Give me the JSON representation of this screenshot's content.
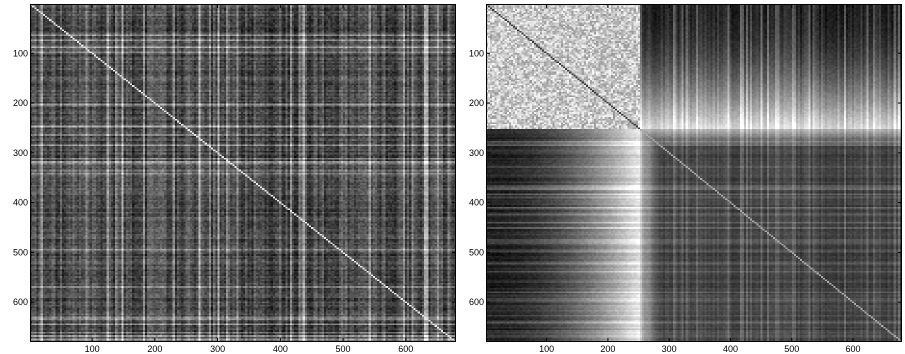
{
  "chart_data": [
    {
      "type": "heatmap",
      "title": "",
      "xlabel": "",
      "ylabel": "",
      "colormap": "gray",
      "xlim": [
        1,
        680
      ],
      "ylim": [
        680,
        1
      ],
      "x_ticks": [
        "100",
        "200",
        "300",
        "400",
        "500",
        "600"
      ],
      "y_ticks": [
        "100",
        "200",
        "300",
        "400",
        "500",
        "600"
      ],
      "pattern": "unordered",
      "grid": false
    },
    {
      "type": "heatmap",
      "title": "",
      "xlabel": "",
      "ylabel": "",
      "colormap": "gray",
      "xlim": [
        1,
        680
      ],
      "ylim": [
        680,
        1
      ],
      "x_ticks": [
        "100",
        "200",
        "300",
        "400",
        "500",
        "600"
      ],
      "y_ticks": [
        "100",
        "200",
        "300",
        "400",
        "500",
        "600"
      ],
      "pattern": "block-ordered",
      "block_boundary": 250,
      "grid": false
    }
  ]
}
